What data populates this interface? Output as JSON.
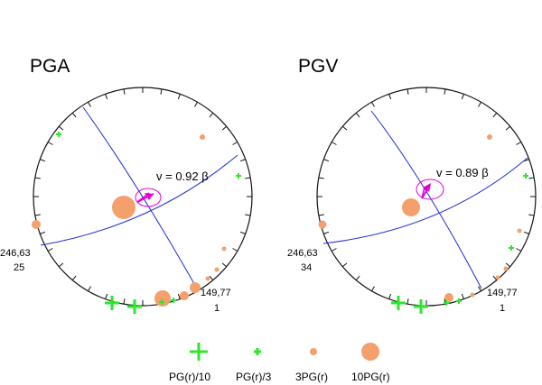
{
  "colors": {
    "plane": "#1f2fd6",
    "arrow": "#e400d8",
    "ellipse": "#e400d8",
    "pg_green": "#2fe62f",
    "pg_orange": "#f4a06c",
    "ink": "#111111"
  },
  "panels": [
    {
      "title": "PGA",
      "velocity_label": "v = 0.92 β",
      "left_label_1": "246,63",
      "left_label_2": "25",
      "bottom_label_1": "149,77",
      "bottom_label_2": "1"
    },
    {
      "title": "PGV",
      "velocity_label": "v = 0.89 β",
      "left_label_1": "246,63",
      "left_label_2": "34",
      "bottom_label_1": "149,77",
      "bottom_label_2": "1"
    }
  ],
  "legend": [
    {
      "label": "PG(r)/10",
      "symbol": "plus-large"
    },
    {
      "label": "PG(r)/3",
      "symbol": "plus-small"
    },
    {
      "label": "3PG(r)",
      "symbol": "circle-small"
    },
    {
      "label": "10PG(r)",
      "symbol": "circle-large"
    }
  ]
}
